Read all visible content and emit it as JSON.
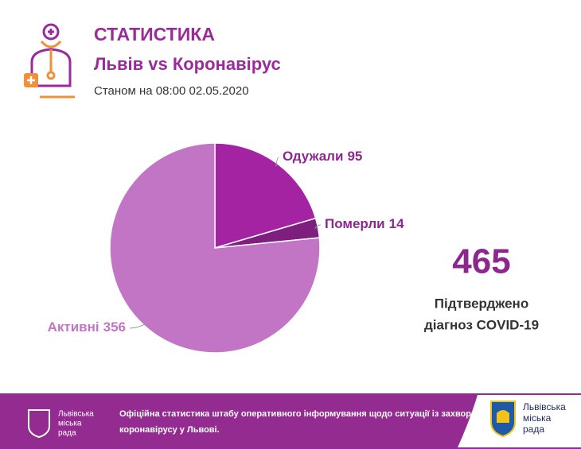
{
  "header": {
    "title": "СТАТИСТИКА",
    "subtitle": "Львів vs Коронавірус",
    "date": "Станом на 08:00 02.05.2020"
  },
  "chart_data": {
    "type": "pie",
    "categories": [
      "Одужали",
      "Померли",
      "Активні"
    ],
    "values": [
      95,
      14,
      356
    ],
    "colors": [
      "#a323a3",
      "#7e1f80",
      "#c275c4"
    ]
  },
  "summary": {
    "value": 465,
    "caption": [
      "Підтверджено",
      "діагноз COVID-19"
    ]
  },
  "footer": {
    "logo_left": [
      "Львівська",
      "міська",
      "рада"
    ],
    "text": [
      "Офіційна статистика штабу оперативного інформування щодо ситуації із захворюванням",
      "коронавірусу у Львові."
    ],
    "logo_right": [
      "Львівська",
      "міська",
      "рада"
    ]
  }
}
